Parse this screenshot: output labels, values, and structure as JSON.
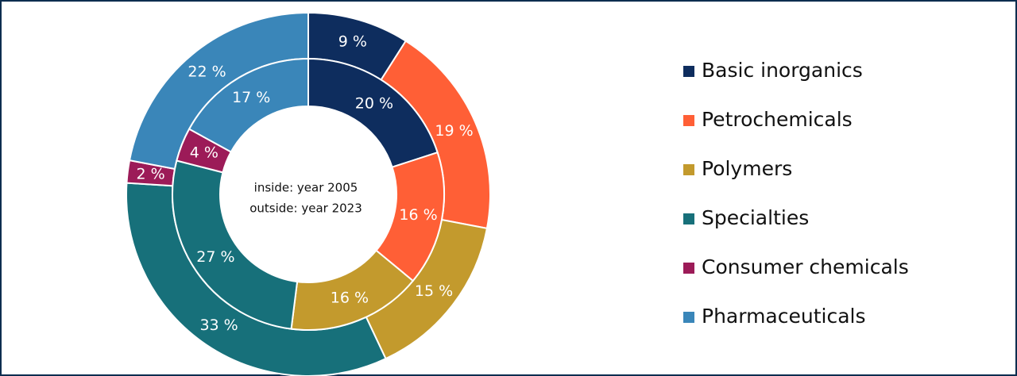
{
  "chart_data": {
    "type": "nested-donut",
    "categories": [
      "Basic inorganics",
      "Petrochemicals",
      "Polymers",
      "Specialties",
      "Consumer chemicals",
      "Pharmaceuticals"
    ],
    "colors": [
      "#0e2d5e",
      "#ff5f36",
      "#c39a2d",
      "#17707a",
      "#9c1b58",
      "#3a86b9"
    ],
    "inner_values": [
      20,
      16,
      16,
      27,
      4,
      17
    ],
    "inner_value_labels": [
      "20 %",
      "16 %",
      "16 %",
      "27 %",
      "4 %",
      "17 %"
    ],
    "outer_values": [
      9,
      19,
      15,
      33,
      2,
      22
    ],
    "outer_value_labels": [
      "9 %",
      "19 %",
      "15 %",
      "33 %",
      "2 %",
      "22 %"
    ],
    "annotations": [
      "inside: year 2005",
      "outside: year 2023"
    ],
    "legend": "right"
  }
}
